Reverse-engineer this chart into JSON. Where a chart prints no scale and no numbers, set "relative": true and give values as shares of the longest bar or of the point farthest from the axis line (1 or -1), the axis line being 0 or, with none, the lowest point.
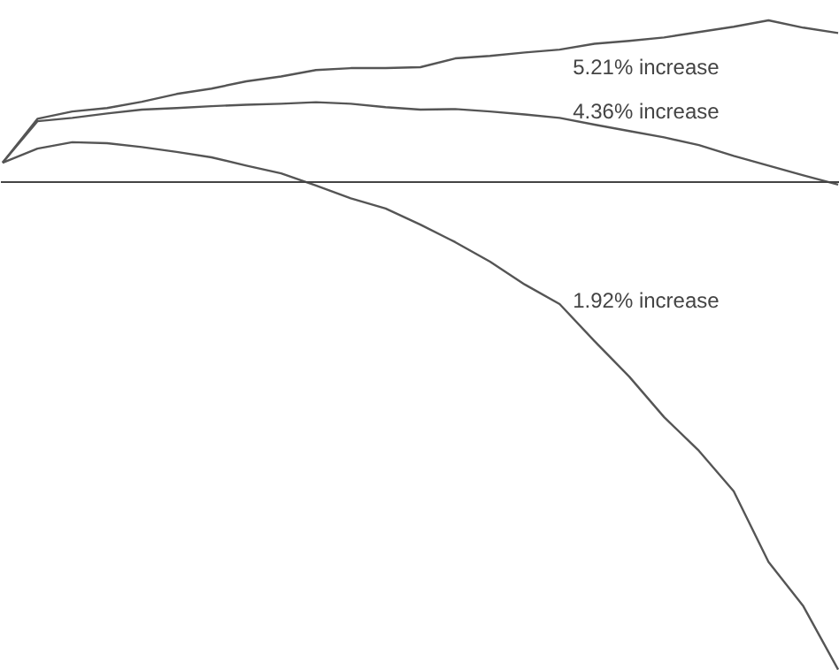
{
  "chart_data": {
    "type": "line",
    "relative": true,
    "categories": [
      null,
      null,
      null,
      null,
      null,
      null,
      null,
      null,
      null,
      null,
      null,
      null,
      null,
      null,
      null,
      null,
      null,
      null,
      null,
      null,
      null,
      null,
      null,
      null,
      null
    ],
    "series": [
      {
        "color": "#555555",
        "values": [
          0.04,
          0.13,
          0.145,
          0.152,
          0.165,
          0.181,
          0.192,
          0.207,
          0.217,
          0.23,
          0.234,
          0.234,
          0.236,
          0.254,
          0.259,
          0.266,
          0.272,
          0.284,
          0.29,
          0.297,
          0.308,
          0.319,
          0.332,
          0.317,
          0.306
        ]
      },
      {
        "color": "#555555",
        "values": [
          0.04,
          0.125,
          0.132,
          0.141,
          0.149,
          0.152,
          0.156,
          0.159,
          0.161,
          0.164,
          0.161,
          0.154,
          0.149,
          0.15,
          0.145,
          0.139,
          0.132,
          0.118,
          0.105,
          0.092,
          0.076,
          0.054,
          0.034,
          0.014,
          -0.005
        ]
      },
      {
        "color": "#555555",
        "values": [
          0.04,
          0.069,
          0.082,
          0.08,
          0.072,
          0.062,
          0.051,
          0.034,
          0.018,
          -0.007,
          -0.033,
          -0.054,
          -0.087,
          -0.123,
          -0.163,
          -0.21,
          -0.25,
          -0.326,
          -0.399,
          -0.482,
          -0.551,
          -0.634,
          -0.779,
          -0.87,
          -1.0
        ]
      }
    ],
    "annotations": [
      "5.21% increase",
      "4.36% increase",
      "1.92% increase"
    ],
    "line_style": "solid",
    "grid": false
  }
}
